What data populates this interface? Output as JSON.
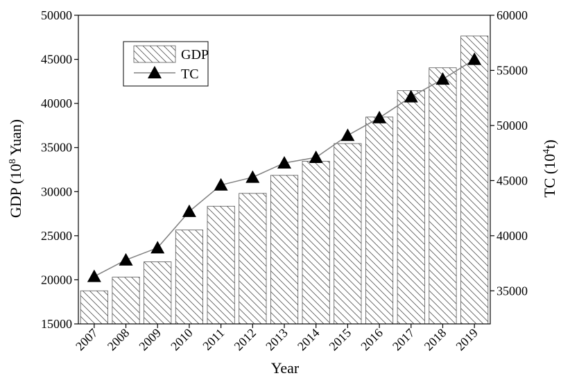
{
  "chart_data": {
    "type": "bar",
    "categories": [
      "2007",
      "2008",
      "2009",
      "2010",
      "2011",
      "2012",
      "2013",
      "2014",
      "2015",
      "2016",
      "2017",
      "2018",
      "2019"
    ],
    "series": [
      {
        "name": "GDP",
        "type": "bar",
        "axis": "left",
        "values": [
          18750,
          20300,
          22050,
          25650,
          28350,
          29800,
          31850,
          33450,
          35450,
          38450,
          41450,
          44050,
          47650
        ]
      },
      {
        "name": "TC",
        "type": "line",
        "axis": "right",
        "values": [
          36300,
          37800,
          38900,
          42200,
          44600,
          45300,
          46600,
          47100,
          49100,
          50700,
          52600,
          54200,
          56000
        ]
      }
    ],
    "xlabel": "Year",
    "ylabel_left": {
      "main": "GDP (10",
      "sup": "8",
      "tail": " Yuan)"
    },
    "ylabel_right": {
      "main": "TC (10",
      "sup": "4",
      "tail": "t)"
    },
    "ylim_left": [
      15000,
      50000
    ],
    "ylim_right": [
      32000,
      60000
    ],
    "yticks_left": [
      15000,
      20000,
      25000,
      30000,
      35000,
      40000,
      45000,
      50000
    ],
    "yticks_right": [
      35000,
      40000,
      45000,
      50000,
      55000,
      60000
    ],
    "legend": {
      "position": "top-left",
      "entries": [
        "GDP",
        "TC"
      ]
    },
    "grid": false,
    "colors": {
      "bar_fill": "#ffffff",
      "bar_hatch": "#555555",
      "line": "#808080",
      "marker": "#000000"
    }
  }
}
